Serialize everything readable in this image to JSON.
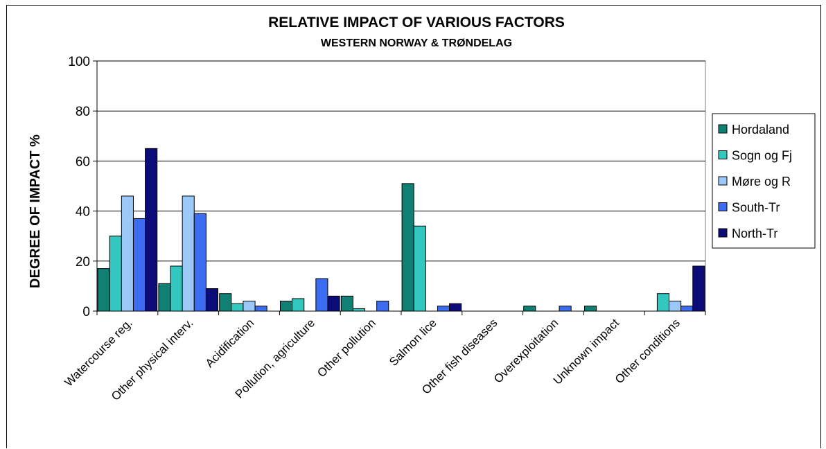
{
  "chart_data": {
    "type": "bar",
    "title": "RELATIVE IMPACT OF VARIOUS FACTORS",
    "subtitle": "WESTERN NORWAY & TRØNDELAG",
    "ylabel": "DEGREE OF IMPACT %",
    "xlabel": "",
    "ylim": [
      0,
      100
    ],
    "yticks": [
      0,
      20,
      40,
      60,
      80,
      100
    ],
    "grid": true,
    "legend_position": "right",
    "categories": [
      "Watercourse reg.",
      "Other physical interv.",
      "Acidification",
      "Pollution, agriculture",
      "Other pollution",
      "Salmon lice",
      "Other fish diseases",
      "Overexploitation",
      "Unknown impact",
      "Other conditions"
    ],
    "series": [
      {
        "name": "Hordaland",
        "color": "#108074",
        "values": [
          17,
          11,
          7,
          4,
          6,
          51,
          0,
          2,
          2,
          0
        ]
      },
      {
        "name": "Sogn og Fj",
        "color": "#32c8c0",
        "values": [
          30,
          18,
          3,
          5,
          1,
          34,
          0,
          0,
          0,
          7
        ]
      },
      {
        "name": "Møre og R",
        "color": "#9cc8f8",
        "values": [
          46,
          46,
          4,
          0,
          0,
          0,
          0,
          0,
          0,
          4
        ]
      },
      {
        "name": "South-Tr",
        "color": "#3c6cf0",
        "values": [
          37,
          39,
          2,
          13,
          4,
          2,
          0,
          2,
          0,
          2
        ]
      },
      {
        "name": "North-Tr",
        "color": "#0c0c78",
        "values": [
          65,
          9,
          0,
          6,
          0,
          3,
          0,
          0,
          0,
          18
        ]
      }
    ]
  }
}
